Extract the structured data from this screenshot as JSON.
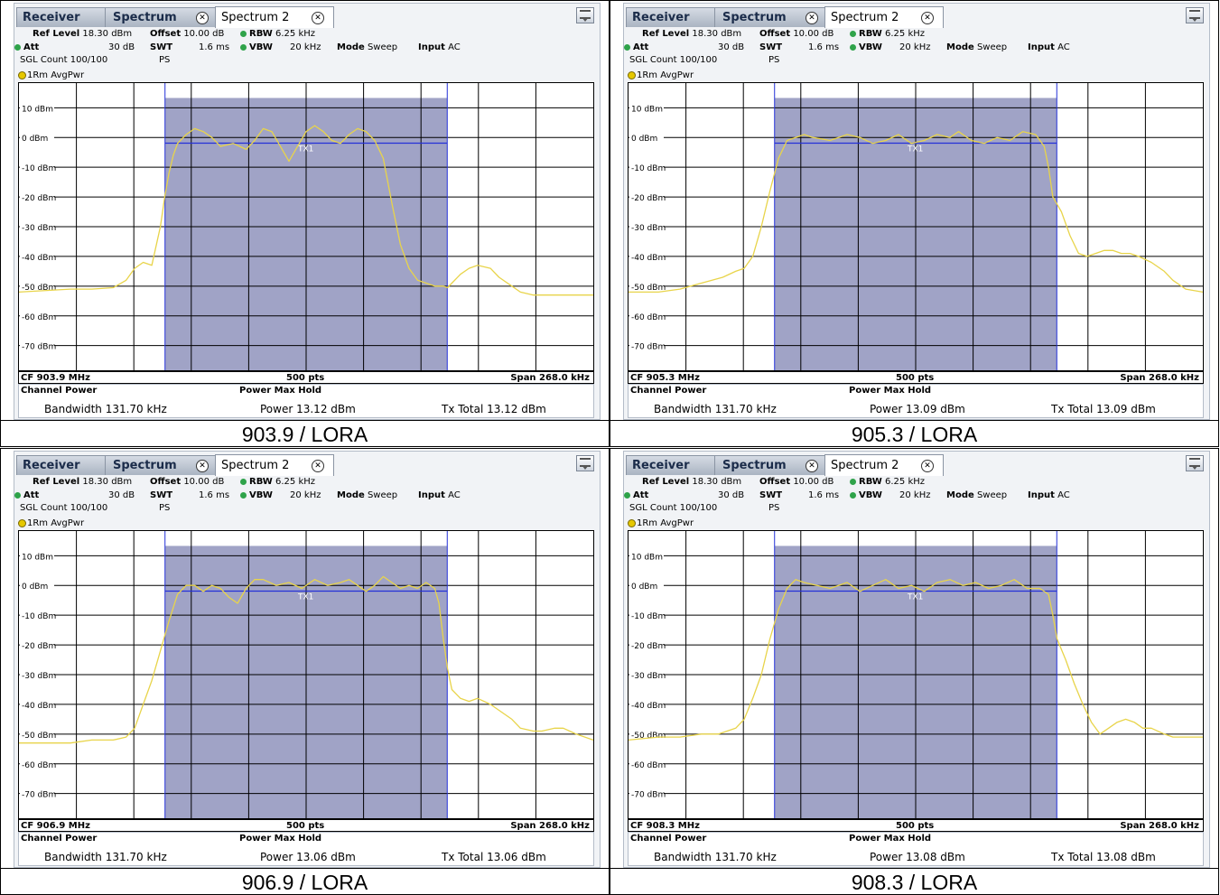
{
  "panels": [
    {
      "tabs": {
        "receiver": "Receiver",
        "spectrum": "Spectrum",
        "spectrum2": "Spectrum 2"
      },
      "settings": {
        "ref_level_label": "Ref Level",
        "ref_level_value": "18.30 dBm",
        "offset_label": "Offset",
        "offset_value": "10.00 dB",
        "rbw_label": "RBW",
        "rbw_value": "6.25 kHz",
        "att_label": "Att",
        "att_value": "30 dB",
        "swt_label": "SWT",
        "swt_value": "1.6 ms",
        "vbw_label": "VBW",
        "vbw_value": "20 kHz",
        "mode_label": "Mode",
        "mode_value": "Sweep",
        "input_label": "Input",
        "input_value": "AC",
        "sgl_count": "SGL Count 100/100",
        "ps": "PS"
      },
      "trace_label": "1Rm AvgPwr",
      "cf": "CF 903.9 MHz",
      "pts": "500 pts",
      "span": "Span 268.0 kHz",
      "channel_power_label": "Channel Power",
      "power_max_hold_label": "Power Max Hold",
      "bandwidth": "Bandwidth  131.70 kHz",
      "power": "Power  13.12 dBm",
      "tx_total": "Tx Total  13.12 dBm",
      "caption": "903.9 / LORA"
    },
    {
      "tabs": {
        "receiver": "Receiver",
        "spectrum": "Spectrum",
        "spectrum2": "Spectrum 2"
      },
      "settings": {
        "ref_level_label": "Ref Level",
        "ref_level_value": "18.30 dBm",
        "offset_label": "Offset",
        "offset_value": "10.00 dB",
        "rbw_label": "RBW",
        "rbw_value": "6.25 kHz",
        "att_label": "Att",
        "att_value": "30 dB",
        "swt_label": "SWT",
        "swt_value": "1.6 ms",
        "vbw_label": "VBW",
        "vbw_value": "20 kHz",
        "mode_label": "Mode",
        "mode_value": "Sweep",
        "input_label": "Input",
        "input_value": "AC",
        "sgl_count": "SGL Count 100/100",
        "ps": "PS"
      },
      "trace_label": "1Rm AvgPwr",
      "cf": "CF 905.3 MHz",
      "pts": "500 pts",
      "span": "Span 268.0 kHz",
      "channel_power_label": "Channel Power",
      "power_max_hold_label": "Power Max Hold",
      "bandwidth": "Bandwidth  131.70 kHz",
      "power": "Power  13.09 dBm",
      "tx_total": "Tx Total  13.09 dBm",
      "caption": "905.3 / LORA"
    },
    {
      "tabs": {
        "receiver": "Receiver",
        "spectrum": "Spectrum",
        "spectrum2": "Spectrum 2"
      },
      "settings": {
        "ref_level_label": "Ref Level",
        "ref_level_value": "18.30 dBm",
        "offset_label": "Offset",
        "offset_value": "10.00 dB",
        "rbw_label": "RBW",
        "rbw_value": "6.25 kHz",
        "att_label": "Att",
        "att_value": "30 dB",
        "swt_label": "SWT",
        "swt_value": "1.6 ms",
        "vbw_label": "VBW",
        "vbw_value": "20 kHz",
        "mode_label": "Mode",
        "mode_value": "Sweep",
        "input_label": "Input",
        "input_value": "AC",
        "sgl_count": "SGL Count 100/100",
        "ps": "PS"
      },
      "trace_label": "1Rm AvgPwr",
      "cf": "CF 906.9 MHz",
      "pts": "500 pts",
      "span": "Span 268.0 kHz",
      "channel_power_label": "Channel Power",
      "power_max_hold_label": "Power Max Hold",
      "bandwidth": "Bandwidth  131.70 kHz",
      "power": "Power  13.06 dBm",
      "tx_total": "Tx Total  13.06 dBm",
      "caption": "906.9 / LORA"
    },
    {
      "tabs": {
        "receiver": "Receiver",
        "spectrum": "Spectrum",
        "spectrum2": "Spectrum 2"
      },
      "settings": {
        "ref_level_label": "Ref Level",
        "ref_level_value": "18.30 dBm",
        "offset_label": "Offset",
        "offset_value": "10.00 dB",
        "rbw_label": "RBW",
        "rbw_value": "6.25 kHz",
        "att_label": "Att",
        "att_value": "30 dB",
        "swt_label": "SWT",
        "swt_value": "1.6 ms",
        "vbw_label": "VBW",
        "vbw_value": "20 kHz",
        "mode_label": "Mode",
        "mode_value": "Sweep",
        "input_label": "Input",
        "input_value": "AC",
        "sgl_count": "SGL Count 100/100",
        "ps": "PS"
      },
      "trace_label": "1Rm AvgPwr",
      "cf": "CF 908.3 MHz",
      "pts": "500 pts",
      "span": "Span 268.0 kHz",
      "channel_power_label": "Channel Power",
      "power_max_hold_label": "Power Max Hold",
      "bandwidth": "Bandwidth  131.70 kHz",
      "power": "Power  13.08 dBm",
      "tx_total": "Tx Total  13.08 dBm",
      "caption": "908.3 / LORA"
    }
  ],
  "colors": {
    "trace": "#e8d44a",
    "channel_fill": "#a0a3c6",
    "channel_line": "#2430d8",
    "grid": "#000000"
  },
  "chart_data": [
    {
      "type": "line",
      "title": "",
      "xlabel": "",
      "ylabel": "",
      "ylim": [
        -78.3,
        18.3
      ],
      "xlim_khz": [
        -134,
        134
      ],
      "y_ticks": [
        "10 dBm",
        "0 dBm",
        "-10 dBm",
        "-20 dBm",
        "-30 dBm",
        "-40 dBm",
        "-50 dBm",
        "-60 dBm",
        "-70 dBm"
      ],
      "y_tick_values": [
        10,
        0,
        -10,
        -20,
        -30,
        -40,
        -50,
        -60,
        -70
      ],
      "channel": {
        "label": "TX1",
        "bandwidth_khz": 131.7,
        "level_dbm": -1.9,
        "fill_top_dbm": 13.3
      },
      "series": [
        {
          "x_khz": [
            -134,
            -110,
            -100,
            -90,
            -84,
            -80,
            -76,
            -72,
            -68,
            -66,
            -64,
            -62,
            -60,
            -56,
            -52,
            -48,
            -44,
            -40,
            -34,
            -28,
            -24,
            -20,
            -16,
            -12,
            -8,
            -4,
            0,
            4,
            8,
            12,
            16,
            20,
            24,
            28,
            32,
            36,
            40,
            44,
            48,
            52,
            56,
            60,
            62,
            64,
            66,
            68,
            72,
            76,
            80,
            86,
            90,
            96,
            100,
            106,
            110,
            116,
            120,
            126,
            134
          ],
          "y_dbm": [
            -52,
            -51,
            -51,
            -50.5,
            -48,
            -44,
            -42,
            -43,
            -30,
            -20,
            -12,
            -6,
            -2,
            1,
            3,
            2,
            0,
            -3,
            -2,
            -4,
            -1,
            3,
            2,
            -3,
            -8,
            -3,
            2,
            4,
            2,
            -1,
            -2,
            1,
            3,
            2,
            -1,
            -7,
            -22,
            -36,
            -44,
            -48,
            -49,
            -50,
            -50,
            -50,
            -50.5,
            -49,
            -46,
            -44,
            -43,
            -44,
            -47,
            -50,
            -52,
            -53,
            -53,
            -53,
            -53,
            -53,
            -53
          ]
        }
      ]
    },
    {
      "type": "line",
      "title": "",
      "xlabel": "",
      "ylabel": "",
      "ylim": [
        -78.3,
        18.3
      ],
      "xlim_khz": [
        -134,
        134
      ],
      "y_ticks": [
        "10 dBm",
        "0 dBm",
        "-10 dBm",
        "-20 dBm",
        "-30 dBm",
        "-40 dBm",
        "-50 dBm",
        "-60 dBm",
        "-70 dBm"
      ],
      "y_tick_values": [
        10,
        0,
        -10,
        -20,
        -30,
        -40,
        -50,
        -60,
        -70
      ],
      "channel": {
        "label": "TX1",
        "bandwidth_khz": 131.7,
        "level_dbm": -1.9,
        "fill_top_dbm": 13.3
      },
      "series": [
        {
          "x_khz": [
            -134,
            -120,
            -110,
            -100,
            -90,
            -84,
            -80,
            -76,
            -72,
            -68,
            -64,
            -60,
            -56,
            -52,
            -48,
            -40,
            -32,
            -26,
            -20,
            -14,
            -8,
            -2,
            4,
            10,
            16,
            20,
            26,
            32,
            38,
            44,
            50,
            56,
            60,
            62,
            64,
            68,
            72,
            76,
            80,
            84,
            88,
            92,
            96,
            100,
            104,
            110,
            116,
            120,
            126,
            134
          ],
          "y_dbm": [
            -52,
            -52,
            -51,
            -49,
            -47,
            -45,
            -44,
            -40,
            -30,
            -18,
            -7,
            -1,
            0,
            1,
            0,
            -1,
            1,
            0,
            -2,
            -1,
            1,
            -2,
            -1,
            1,
            0,
            2,
            -1,
            -2,
            0,
            -1,
            2,
            1,
            -3,
            -10,
            -20,
            -25,
            -33,
            -39,
            -40,
            -39,
            -38,
            -38,
            -39,
            -39,
            -40,
            -42,
            -45,
            -48,
            -51,
            -52
          ]
        }
      ]
    },
    {
      "type": "line",
      "title": "",
      "xlabel": "",
      "ylabel": "",
      "ylim": [
        -78.3,
        18.3
      ],
      "xlim_khz": [
        -134,
        134
      ],
      "y_ticks": [
        "10 dBm",
        "0 dBm",
        "-10 dBm",
        "-20 dBm",
        "-30 dBm",
        "-40 dBm",
        "-50 dBm",
        "-60 dBm",
        "-70 dBm"
      ],
      "y_tick_values": [
        10,
        0,
        -10,
        -20,
        -30,
        -40,
        -50,
        -60,
        -70
      ],
      "channel": {
        "label": "TX1",
        "bandwidth_khz": 131.7,
        "level_dbm": -1.9,
        "fill_top_dbm": 13.3
      },
      "series": [
        {
          "x_khz": [
            -134,
            -120,
            -110,
            -100,
            -90,
            -84,
            -80,
            -76,
            -72,
            -68,
            -64,
            -60,
            -56,
            -52,
            -48,
            -44,
            -40,
            -36,
            -32,
            -28,
            -24,
            -20,
            -14,
            -8,
            -2,
            4,
            10,
            16,
            20,
            24,
            28,
            32,
            36,
            40,
            44,
            48,
            52,
            56,
            60,
            62,
            64,
            66,
            68,
            72,
            76,
            80,
            86,
            90,
            96,
            100,
            106,
            110,
            116,
            120,
            126,
            134
          ],
          "y_dbm": [
            -53,
            -53,
            -53,
            -52,
            -52,
            -51,
            -48,
            -40,
            -32,
            -22,
            -12,
            -3,
            0,
            0,
            -2,
            0,
            -1,
            -4,
            -6,
            -1,
            2,
            2,
            0,
            1,
            -1,
            2,
            0,
            1,
            2,
            0,
            -2,
            0,
            3,
            1,
            -1,
            0,
            -1,
            1,
            -1,
            -6,
            -18,
            -28,
            -35,
            -38,
            -39,
            -38,
            -40,
            -42,
            -45,
            -48,
            -49,
            -49,
            -48,
            -48,
            -50,
            -52
          ]
        }
      ]
    },
    {
      "type": "line",
      "title": "",
      "xlabel": "",
      "ylabel": "",
      "ylim": [
        -78.3,
        18.3
      ],
      "xlim_khz": [
        -134,
        134
      ],
      "y_ticks": [
        "10 dBm",
        "0 dBm",
        "-10 dBm",
        "-20 dBm",
        "-30 dBm",
        "-40 dBm",
        "-50 dBm",
        "-60 dBm",
        "-70 dBm"
      ],
      "y_tick_values": [
        10,
        0,
        -10,
        -20,
        -30,
        -40,
        -50,
        -60,
        -70
      ],
      "channel": {
        "label": "TX1",
        "bandwidth_khz": 131.7,
        "level_dbm": -1.9,
        "fill_top_dbm": 13.3
      },
      "series": [
        {
          "x_khz": [
            -134,
            -120,
            -110,
            -100,
            -92,
            -84,
            -80,
            -76,
            -72,
            -68,
            -64,
            -60,
            -56,
            -52,
            -46,
            -40,
            -32,
            -26,
            -20,
            -14,
            -8,
            -2,
            4,
            10,
            16,
            22,
            28,
            34,
            40,
            46,
            52,
            58,
            62,
            64,
            66,
            70,
            74,
            78,
            82,
            86,
            90,
            94,
            98,
            102,
            106,
            110,
            116,
            120,
            126,
            134
          ],
          "y_dbm": [
            -52,
            -51,
            -51,
            -50,
            -50,
            -48,
            -45,
            -38,
            -30,
            -18,
            -8,
            -1,
            2,
            1,
            0,
            -1,
            1,
            -2,
            0,
            2,
            -1,
            0,
            -2,
            1,
            2,
            0,
            1,
            -1,
            0,
            2,
            -1,
            -1,
            -3,
            -10,
            -18,
            -25,
            -33,
            -40,
            -46,
            -50,
            -48,
            -46,
            -45,
            -46,
            -48,
            -48,
            -50,
            -51,
            -51,
            -51
          ]
        }
      ]
    }
  ]
}
